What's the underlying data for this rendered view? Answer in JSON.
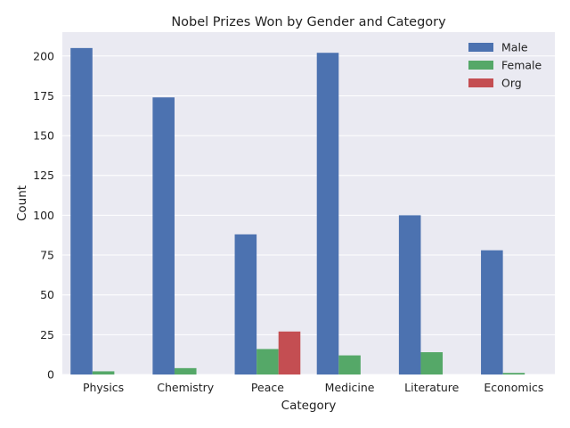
{
  "chart_data": {
    "type": "bar",
    "title": "Nobel Prizes Won by Gender and Category",
    "xlabel": "Category",
    "ylabel": "Count",
    "categories": [
      "Physics",
      "Chemistry",
      "Peace",
      "Medicine",
      "Literature",
      "Economics"
    ],
    "series": [
      {
        "name": "Male",
        "color": "#4c72b0",
        "values": [
          205,
          174,
          88,
          202,
          100,
          78
        ]
      },
      {
        "name": "Female",
        "color": "#55a868",
        "values": [
          2,
          4,
          16,
          12,
          14,
          1
        ]
      },
      {
        "name": "Org",
        "color": "#c44e52",
        "values": [
          0,
          0,
          27,
          0,
          0,
          0
        ]
      }
    ],
    "ylim": [
      0,
      215
    ],
    "yticks": [
      0,
      25,
      50,
      75,
      100,
      125,
      150,
      175,
      200
    ],
    "grid": true,
    "legend_position": "top-right",
    "background_color": "#eaeaf2"
  }
}
